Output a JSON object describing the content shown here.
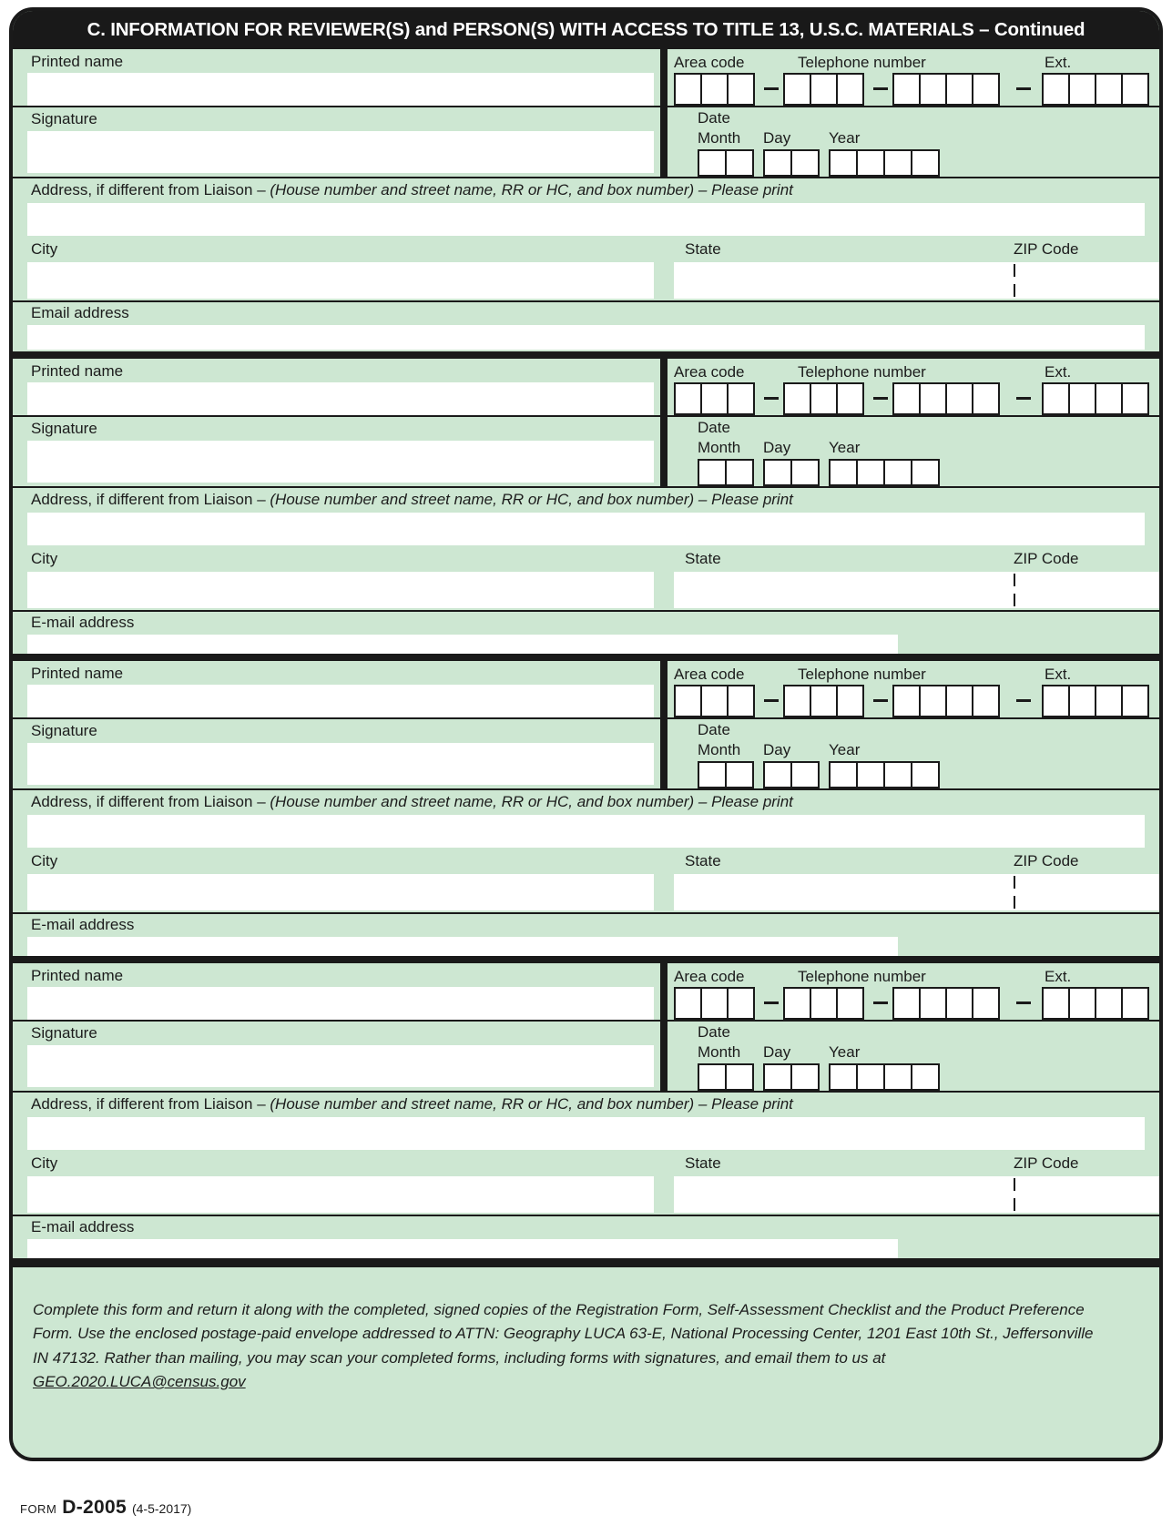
{
  "header": {
    "title": "C. INFORMATION FOR REVIEWER(S) and PERSON(S) WITH ACCESS TO TITLE 13, U.S.C. MATERIALS – Continued"
  },
  "blocks": [
    {
      "printed_name_label": "Printed name",
      "signature_label": "Signature",
      "area_code_label": "Area code",
      "telephone_label": "Telephone number",
      "ext_label": "Ext.",
      "date_label": "Date",
      "month_label": "Month",
      "day_label": "Day",
      "year_label": "Year",
      "address_label": "Address, if different from Liaison –",
      "address_label_italic": "(House number and street name, RR or HC, and box number) – Please print",
      "city_label": "City",
      "state_label": "State",
      "zip_label": "ZIP Code",
      "email_label": "Email address",
      "email_wide": true
    },
    {
      "printed_name_label": "Printed name",
      "signature_label": "Signature",
      "area_code_label": "Area code",
      "telephone_label": "Telephone number",
      "ext_label": "Ext.",
      "date_label": "Date",
      "month_label": "Month",
      "day_label": "Day",
      "year_label": "Year",
      "address_label": "Address, if different from Liaison –",
      "address_label_italic": "(House number and street name, RR or HC, and box number) – Please print",
      "city_label": "City",
      "state_label": "State",
      "zip_label": "ZIP Code",
      "email_label": "E-mail address",
      "email_wide": false
    },
    {
      "printed_name_label": "Printed name",
      "signature_label": "Signature",
      "area_code_label": "Area code",
      "telephone_label": "Telephone number",
      "ext_label": "Ext.",
      "date_label": "Date",
      "month_label": "Month",
      "day_label": "Day",
      "year_label": "Year",
      "address_label": "Address, if different from Liaison –",
      "address_label_italic": "(House number and street name, RR or HC, and box number) – Please print",
      "city_label": "City",
      "state_label": "State",
      "zip_label": "ZIP Code",
      "email_label": "E-mail address",
      "email_wide": false
    },
    {
      "printed_name_label": "Printed name",
      "signature_label": "Signature",
      "area_code_label": "Area code",
      "telephone_label": "Telephone number",
      "ext_label": "Ext.",
      "date_label": "Date",
      "month_label": "Month",
      "day_label": "Day",
      "year_label": "Year",
      "address_label": "Address, if different from Liaison –",
      "address_label_italic": "(House number and street name, RR or HC, and box number) – Please print",
      "city_label": "City",
      "state_label": "State",
      "zip_label": "ZIP Code",
      "email_label": "E-mail address",
      "email_wide": false
    }
  ],
  "footer": {
    "instructions": "Complete this form and return it along with the completed, signed copies of the Registration Form, Self-Assessment Checklist and the Product Preference Form. Use the enclosed postage-paid envelope addressed to ATTN: Geography LUCA 63-E, National Processing Center, 1201 East 10th St., Jeffersonville IN 47132. Rather than mailing, you may scan your completed forms, including forms with signatures, and email them to us at ",
    "email_link": "GEO.2020.LUCA@census.gov"
  },
  "form_id": {
    "prefix": "FORM",
    "number": "D-2005",
    "revision": "(4-5-2017)"
  },
  "colors": {
    "form_green": "#cde7d2",
    "ink_black": "#1a1a1a"
  }
}
